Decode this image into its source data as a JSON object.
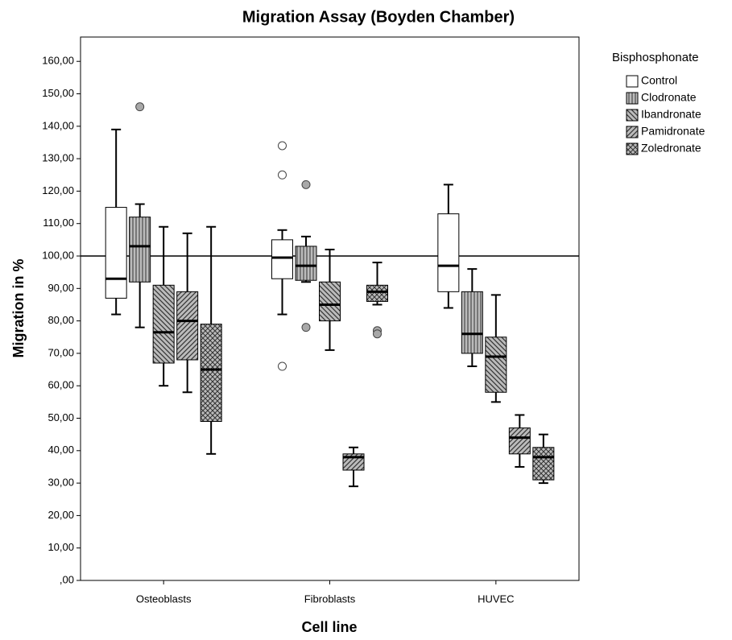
{
  "chart_data": {
    "type": "box",
    "title": "Migration Assay (Boyden Chamber)",
    "x_label": "Cell line",
    "y_label": "Migration in %",
    "legend_title": "Bisphosphonate",
    "categories": [
      "Osteoblasts",
      "Fibroblasts",
      "HUVEC"
    ],
    "ylim": [
      0,
      167.5
    ],
    "yticks": [
      {
        "value": 0,
        "label": ",00"
      },
      {
        "value": 10,
        "label": "10,00"
      },
      {
        "value": 20,
        "label": "20,00"
      },
      {
        "value": 30,
        "label": "30,00"
      },
      {
        "value": 40,
        "label": "40,00"
      },
      {
        "value": 50,
        "label": "50,00"
      },
      {
        "value": 60,
        "label": "60,00"
      },
      {
        "value": 70,
        "label": "70,00"
      },
      {
        "value": 80,
        "label": "80,00"
      },
      {
        "value": 90,
        "label": "90,00"
      },
      {
        "value": 100,
        "label": "100,00"
      },
      {
        "value": 110,
        "label": "110,00"
      },
      {
        "value": 120,
        "label": "120,00"
      },
      {
        "value": 130,
        "label": "130,00"
      },
      {
        "value": 140,
        "label": "140,00"
      },
      {
        "value": 150,
        "label": "150,00"
      },
      {
        "value": 160,
        "label": "160,00"
      }
    ],
    "reference_line": 100,
    "series": [
      {
        "name": "Control",
        "pattern": "none",
        "color": "#ffffff",
        "min": [
          82,
          82,
          84
        ],
        "q1": [
          87,
          93,
          89
        ],
        "median": [
          93,
          99.5,
          97
        ],
        "q3": [
          115,
          105,
          113
        ],
        "max": [
          139,
          108,
          122
        ],
        "outliers": [
          [],
          [
            134,
            125,
            66
          ],
          []
        ]
      },
      {
        "name": "Clodronate",
        "pattern": "vertical",
        "color": "#a8a8a8",
        "min": [
          78,
          92,
          66
        ],
        "q1": [
          92,
          92.5,
          70
        ],
        "median": [
          103,
          97,
          76
        ],
        "q3": [
          112,
          103,
          89
        ],
        "max": [
          116,
          106,
          96
        ],
        "outliers": [
          [
            146
          ],
          [
            122,
            78
          ],
          []
        ]
      },
      {
        "name": "Ibandronate",
        "pattern": "backslash",
        "color": "#a8a8a8",
        "min": [
          60,
          71,
          55
        ],
        "q1": [
          67,
          80,
          58
        ],
        "median": [
          76.5,
          85,
          69
        ],
        "q3": [
          91,
          92,
          75
        ],
        "max": [
          109,
          102,
          88
        ],
        "outliers": [
          [],
          [],
          []
        ]
      },
      {
        "name": "Pamidronate",
        "pattern": "slash",
        "color": "#a8a8a8",
        "min": [
          58,
          29,
          35
        ],
        "q1": [
          68,
          34,
          39
        ],
        "median": [
          80,
          38,
          44
        ],
        "q3": [
          89,
          39,
          47
        ],
        "max": [
          107,
          41,
          51
        ],
        "outliers": [
          [],
          [],
          []
        ]
      },
      {
        "name": "Zoledronate",
        "pattern": "cross",
        "color": "#a8a8a8",
        "min": [
          39,
          85,
          30
        ],
        "q1": [
          49,
          86,
          31
        ],
        "median": [
          65,
          89,
          38
        ],
        "q3": [
          79,
          91,
          41
        ],
        "max": [
          109,
          98,
          45
        ],
        "outliers": [
          [],
          [
            77,
            76
          ],
          []
        ]
      }
    ]
  }
}
